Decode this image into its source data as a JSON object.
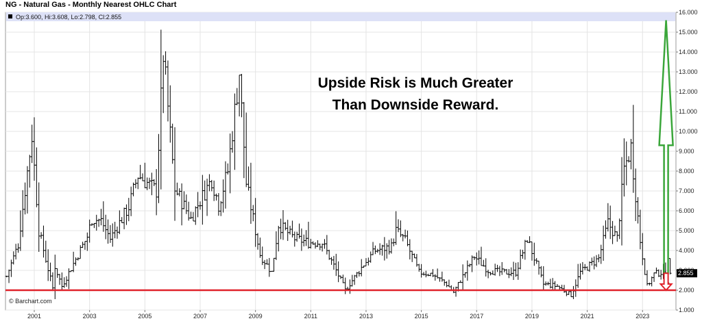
{
  "title": "NG - Natural Gas - Monthly Nearest OHLC Chart",
  "ohlc_label": "Op:3.600, Hi:3.608, Lo:2.798, Cl:2.855",
  "watermark": "© Barchart.com",
  "annotation": {
    "line1": "Upside Risk is Much Greater",
    "line2": "Than Downside Reward."
  },
  "last_price_label": "2.855",
  "colors": {
    "bars": "#000000",
    "support_line": "#e0222a",
    "up_arrow": "#3aa63a",
    "down_arrow": "#e0222a",
    "header_band": "#dde1f7",
    "grid": "#e4e4e4"
  },
  "chart_data": {
    "type": "ohlc",
    "title": "NG - Natural Gas - Monthly Nearest OHLC Chart",
    "x_start": "2000-01",
    "x_end": "2024-03",
    "ylim": [
      1.0,
      16.0
    ],
    "y_ticks": [
      "1.000",
      "2.000",
      "3.000",
      "4.000",
      "5.000",
      "6.000",
      "7.000",
      "8.000",
      "9.000",
      "10.000",
      "11.000",
      "12.000",
      "13.000",
      "14.000",
      "15.000",
      "16.000"
    ],
    "x_ticks": [
      "2001",
      "2003",
      "2005",
      "2007",
      "2009",
      "2011",
      "2013",
      "2015",
      "2017",
      "2019",
      "2021",
      "2023"
    ],
    "grid": true,
    "support_level": 2.0,
    "upside_arrow": {
      "date": "2024-01",
      "from": 2.855,
      "to": 15.6
    },
    "downside_arrow": {
      "date": "2024-01",
      "from": 2.855,
      "to": 2.0
    },
    "last_bar": {
      "open": 3.6,
      "high": 3.608,
      "low": 2.798,
      "close": 2.855
    },
    "monthly_close_anchors": [
      [
        "2000-01",
        2.7
      ],
      [
        "2000-06",
        4.3
      ],
      [
        "2000-12",
        9.8
      ],
      [
        "2001-03",
        5.0
      ],
      [
        "2001-09",
        2.1
      ],
      [
        "2001-10",
        3.2
      ],
      [
        "2002-01",
        2.2
      ],
      [
        "2002-12",
        4.7
      ],
      [
        "2003-02",
        5.6
      ],
      [
        "2003-06",
        5.5
      ],
      [
        "2003-10",
        4.6
      ],
      [
        "2004-06",
        6.2
      ],
      [
        "2004-10",
        7.8
      ],
      [
        "2005-06",
        7.0
      ],
      [
        "2005-09",
        13.9
      ],
      [
        "2005-11",
        11.2
      ],
      [
        "2006-02",
        7.1
      ],
      [
        "2006-09",
        5.6
      ],
      [
        "2006-12",
        6.3
      ],
      [
        "2007-06",
        7.6
      ],
      [
        "2007-09",
        6.3
      ],
      [
        "2008-01",
        8.0
      ],
      [
        "2008-06",
        13.0
      ],
      [
        "2008-09",
        7.4
      ],
      [
        "2009-03",
        3.8
      ],
      [
        "2009-08",
        2.9
      ],
      [
        "2009-11",
        5.3
      ],
      [
        "2010-06",
        4.6
      ],
      [
        "2010-12",
        4.4
      ],
      [
        "2011-06",
        4.4
      ],
      [
        "2011-12",
        3.0
      ],
      [
        "2012-04",
        2.0
      ],
      [
        "2012-12",
        3.3
      ],
      [
        "2013-05",
        4.0
      ],
      [
        "2013-12",
        4.2
      ],
      [
        "2014-02",
        5.0
      ],
      [
        "2014-06",
        4.5
      ],
      [
        "2014-12",
        2.9
      ],
      [
        "2015-06",
        2.8
      ],
      [
        "2015-12",
        2.3
      ],
      [
        "2016-03",
        1.9
      ],
      [
        "2016-12",
        3.7
      ],
      [
        "2017-06",
        3.0
      ],
      [
        "2017-12",
        2.9
      ],
      [
        "2018-06",
        2.9
      ],
      [
        "2018-11",
        4.6
      ],
      [
        "2019-06",
        2.3
      ],
      [
        "2019-12",
        2.2
      ],
      [
        "2020-06",
        1.75
      ],
      [
        "2020-10",
        2.9
      ],
      [
        "2021-06",
        3.6
      ],
      [
        "2021-10",
        5.4
      ],
      [
        "2022-02",
        4.6
      ],
      [
        "2022-05",
        8.1
      ],
      [
        "2022-08",
        9.2
      ],
      [
        "2022-12",
        4.5
      ],
      [
        "2023-03",
        2.2
      ],
      [
        "2023-06",
        2.8
      ],
      [
        "2023-09",
        2.9
      ],
      [
        "2023-12",
        2.5
      ],
      [
        "2024-01",
        2.855
      ]
    ]
  }
}
